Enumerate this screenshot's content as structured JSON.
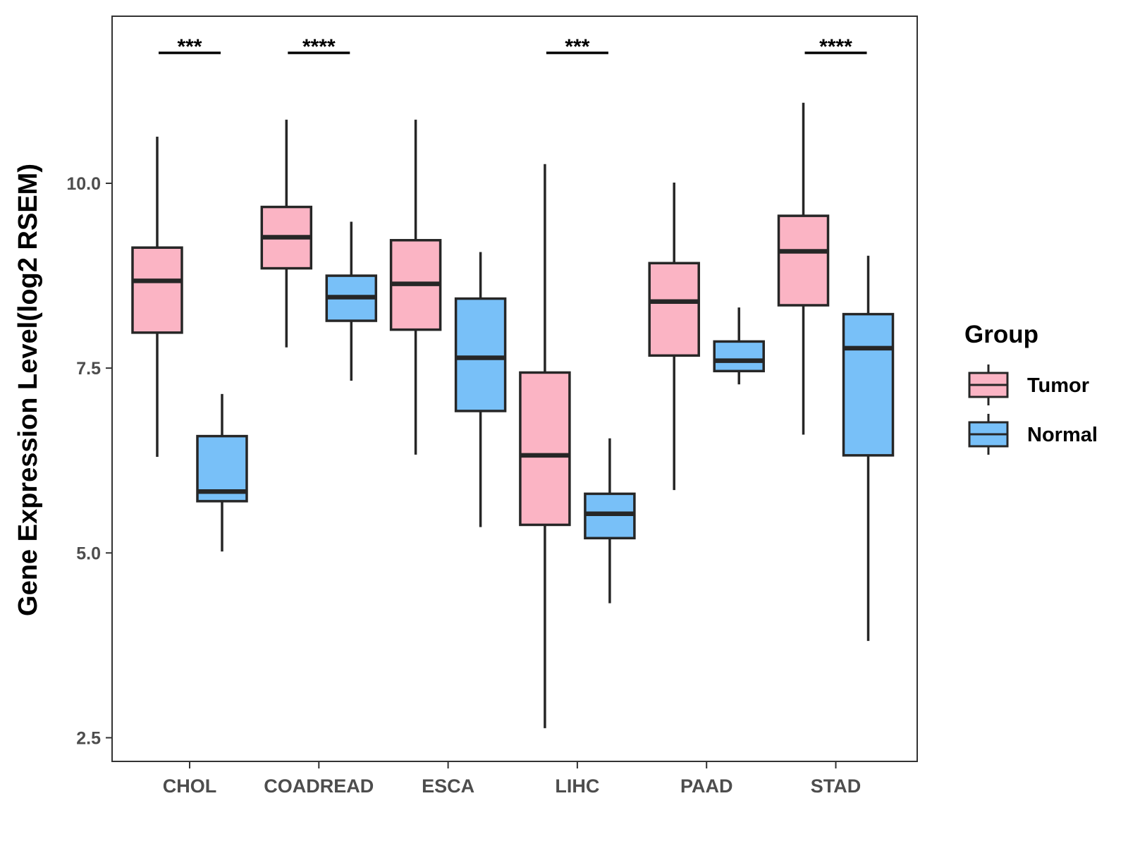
{
  "chart_data": {
    "type": "boxplot",
    "ylabel": "Gene Expression Level(log2 RSEM)",
    "xlabel": "",
    "ylim": [
      2.18,
      12.26
    ],
    "yticks": [
      "2.5",
      "5.0",
      "7.5",
      "10.0"
    ],
    "yticks_values": [
      2.5,
      5.0,
      7.5,
      10.0
    ],
    "categories": [
      "CHOL",
      "COADREAD",
      "ESCA",
      "LIHC",
      "PAAD",
      "STAD"
    ],
    "legend": {
      "title": "Group",
      "position": "right",
      "entries": [
        {
          "name": "Tumor",
          "color": "#FBB4C4"
        },
        {
          "name": "Normal",
          "color": "#78C0F8"
        }
      ]
    },
    "series": [
      {
        "name": "Tumor",
        "color": "#FBB4C4",
        "boxes": [
          {
            "category": "CHOL",
            "min": 6.3,
            "q1": 7.98,
            "median": 8.68,
            "q3": 9.13,
            "max": 10.63
          },
          {
            "category": "COADREAD",
            "min": 7.78,
            "q1": 8.85,
            "median": 9.27,
            "q3": 9.68,
            "max": 10.86
          },
          {
            "category": "ESCA",
            "min": 6.33,
            "q1": 8.02,
            "median": 8.64,
            "q3": 9.23,
            "max": 10.86
          },
          {
            "category": "LIHC",
            "min": 2.63,
            "q1": 5.38,
            "median": 6.32,
            "q3": 7.44,
            "max": 10.26
          },
          {
            "category": "PAAD",
            "min": 5.85,
            "q1": 7.67,
            "median": 8.4,
            "q3": 8.92,
            "max": 10.01
          },
          {
            "category": "STAD",
            "min": 6.6,
            "q1": 8.35,
            "median": 9.08,
            "q3": 9.56,
            "max": 11.09
          }
        ]
      },
      {
        "name": "Normal",
        "color": "#78C0F8",
        "boxes": [
          {
            "category": "CHOL",
            "min": 5.02,
            "q1": 5.7,
            "median": 5.83,
            "q3": 6.58,
            "max": 7.15
          },
          {
            "category": "COADREAD",
            "min": 7.33,
            "q1": 8.14,
            "median": 8.46,
            "q3": 8.75,
            "max": 9.48
          },
          {
            "category": "ESCA",
            "min": 5.35,
            "q1": 6.92,
            "median": 7.64,
            "q3": 8.44,
            "max": 9.07
          },
          {
            "category": "LIHC",
            "min": 4.32,
            "q1": 5.2,
            "median": 5.53,
            "q3": 5.8,
            "max": 6.55
          },
          {
            "category": "PAAD",
            "min": 7.28,
            "q1": 7.46,
            "median": 7.6,
            "q3": 7.86,
            "max": 8.32
          },
          {
            "category": "STAD",
            "min": 3.81,
            "q1": 6.32,
            "median": 7.77,
            "q3": 8.23,
            "max": 9.02
          }
        ]
      }
    ],
    "annotations": [
      {
        "category": "CHOL",
        "label": "***"
      },
      {
        "category": "COADREAD",
        "label": "****"
      },
      {
        "category": "LIHC",
        "label": "***"
      },
      {
        "category": "STAD",
        "label": "****"
      }
    ]
  }
}
